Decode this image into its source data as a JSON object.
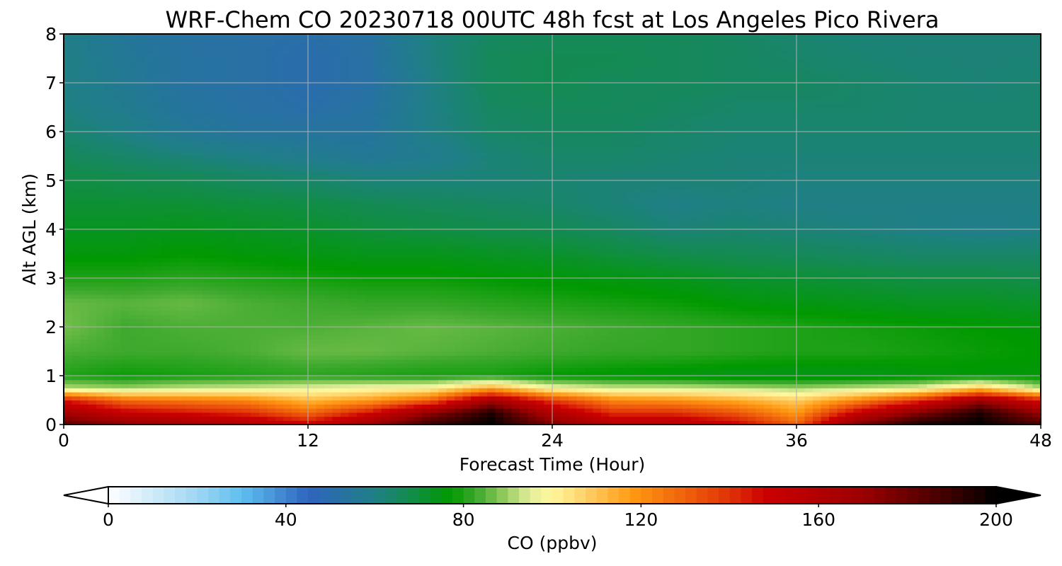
{
  "chart_data": {
    "type": "heatmap",
    "title": "WRF-Chem CO  20230718 00UTC 48h fcst at Los Angeles Pico Rivera",
    "xlabel": "Forecast Time (Hour)",
    "ylabel": "Alt AGL (km)",
    "xlim": [
      0,
      48
    ],
    "ylim": [
      0,
      8
    ],
    "x_ticks": [
      "0",
      "12",
      "24",
      "36",
      "48"
    ],
    "y_ticks": [
      "0",
      "1",
      "2",
      "3",
      "4",
      "5",
      "6",
      "7",
      "8"
    ],
    "grid": true,
    "colorbar": {
      "label": "CO  (ppbv)",
      "range": [
        0,
        200
      ],
      "ticks": [
        "0",
        "40",
        "80",
        "120",
        "160",
        "200"
      ],
      "extend": "both",
      "stops": [
        {
          "v": 0,
          "c": "#ffffff"
        },
        {
          "v": 20,
          "c": "#9fd6f2"
        },
        {
          "v": 30,
          "c": "#5ec0f0"
        },
        {
          "v": 45,
          "c": "#2f64bf"
        },
        {
          "v": 60,
          "c": "#1f7f86"
        },
        {
          "v": 70,
          "c": "#0f8f3c"
        },
        {
          "v": 77,
          "c": "#009900"
        },
        {
          "v": 83,
          "c": "#3ea92e"
        },
        {
          "v": 89,
          "c": "#8fca5a"
        },
        {
          "v": 95,
          "c": "#e4ed9c"
        },
        {
          "v": 100,
          "c": "#fff79c"
        },
        {
          "v": 107,
          "c": "#ffd36b"
        },
        {
          "v": 118,
          "c": "#ff9a12"
        },
        {
          "v": 128,
          "c": "#f26a0c"
        },
        {
          "v": 140,
          "c": "#e03208"
        },
        {
          "v": 148,
          "c": "#cc0000"
        },
        {
          "v": 170,
          "c": "#9b0000"
        },
        {
          "v": 190,
          "c": "#3a0000"
        },
        {
          "v": 200,
          "c": "#000000"
        }
      ]
    },
    "x": [
      0,
      3,
      6,
      9,
      12,
      15,
      18,
      21,
      24,
      27,
      30,
      33,
      36,
      39,
      42,
      45,
      48
    ],
    "y": [
      0,
      0.25,
      0.5,
      0.75,
      1.0,
      1.5,
      2.0,
      2.5,
      3.0,
      3.5,
      4.0,
      4.5,
      5.0,
      5.5,
      6.0,
      6.5,
      7.0,
      7.5,
      8.0
    ],
    "z": [
      [
        185,
        175,
        168,
        162,
        150,
        170,
        192,
        200,
        178,
        160,
        160,
        150,
        130,
        178,
        198,
        200,
        188
      ],
      [
        165,
        150,
        145,
        140,
        128,
        145,
        172,
        195,
        160,
        140,
        140,
        132,
        118,
        150,
        175,
        195,
        170
      ],
      [
        145,
        128,
        125,
        122,
        112,
        118,
        130,
        165,
        138,
        122,
        120,
        115,
        108,
        122,
        140,
        168,
        145
      ],
      [
        92,
        90,
        93,
        94,
        96,
        98,
        100,
        115,
        98,
        94,
        94,
        92,
        90,
        93,
        96,
        110,
        92
      ],
      [
        80,
        78,
        79,
        80,
        81,
        80,
        79,
        79,
        77,
        76,
        75,
        74,
        74,
        74,
        75,
        76,
        76
      ],
      [
        84,
        83,
        83,
        84,
        86,
        86,
        85,
        84,
        83,
        82,
        82,
        81,
        80,
        80,
        79,
        78,
        77
      ],
      [
        87,
        83,
        84,
        84,
        84,
        85,
        86,
        85,
        84,
        83,
        82,
        81,
        80,
        79,
        78,
        77,
        76
      ],
      [
        86,
        85,
        86,
        84,
        83,
        82,
        82,
        81,
        80,
        79,
        78,
        76,
        75,
        74,
        73,
        73,
        72
      ],
      [
        80,
        80,
        81,
        80,
        79,
        78,
        78,
        77,
        76,
        75,
        74,
        72,
        71,
        70,
        69,
        69,
        68
      ],
      [
        76,
        76,
        77,
        76,
        75,
        74,
        74,
        73,
        72,
        70,
        68,
        67,
        66,
        65,
        64,
        64,
        64
      ],
      [
        73,
        73,
        74,
        73,
        72,
        70,
        69,
        68,
        67,
        65,
        62,
        63,
        62,
        61,
        60,
        59,
        60
      ],
      [
        71,
        71,
        71,
        70,
        69,
        67,
        66,
        65,
        64,
        62,
        60,
        61,
        60,
        60,
        60,
        60,
        60
      ],
      [
        69,
        68,
        67,
        65,
        64,
        62,
        62,
        62,
        63,
        62,
        62,
        62,
        61,
        61,
        61,
        61,
        61
      ],
      [
        66,
        64,
        62,
        60,
        58,
        56,
        58,
        62,
        64,
        64,
        63,
        62,
        62,
        62,
        62,
        62,
        62
      ],
      [
        63,
        60,
        56,
        54,
        54,
        54,
        60,
        64,
        65,
        65,
        64,
        63,
        63,
        63,
        63,
        63,
        63
      ],
      [
        61,
        58,
        54,
        52,
        51,
        53,
        60,
        65,
        66,
        66,
        65,
        64,
        64,
        64,
        63,
        63,
        63
      ],
      [
        60,
        57,
        53,
        52,
        50,
        52,
        60,
        66,
        67,
        66,
        66,
        65,
        65,
        64,
        63,
        62,
        63
      ],
      [
        60,
        56,
        53,
        52,
        50,
        52,
        61,
        66,
        67,
        67,
        66,
        65,
        64,
        63,
        62,
        62,
        62
      ],
      [
        60,
        55,
        53,
        52,
        51,
        53,
        61,
        65,
        66,
        66,
        66,
        65,
        63,
        62,
        62,
        62,
        62
      ]
    ]
  }
}
